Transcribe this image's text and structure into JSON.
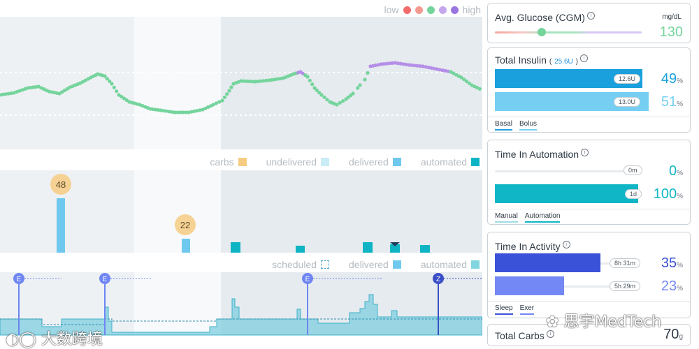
{
  "legend_top": {
    "low": "low",
    "high": "high",
    "colors": [
      "#f36b6b",
      "#f59a90",
      "#74d49c",
      "#c5a6ef",
      "#9a74df"
    ]
  },
  "legend_mid": {
    "carbs": "carbs",
    "undelivered": "undelivered",
    "delivered": "delivered",
    "automated": "automated",
    "colors": {
      "carbs": "#f6cc82",
      "undelivered": "#c9ecf6",
      "delivered": "#6fc9ee",
      "automated": "#0fb4c4"
    }
  },
  "legend_bottom": {
    "scheduled": "scheduled",
    "delivered": "delivered",
    "automated": "automated"
  },
  "carbs_markers": [
    {
      "value": "48"
    },
    {
      "value": "22"
    }
  ],
  "event_markers": [
    {
      "letter": "E"
    },
    {
      "letter": "E"
    },
    {
      "letter": "E"
    },
    {
      "letter": "Z"
    }
  ],
  "avg_glucose": {
    "title": "Avg. Glucose (CGM)",
    "unit": "mg/dL",
    "value": "130",
    "indicator_level": 0.32
  },
  "total_insulin": {
    "title": "Total Insulin",
    "total": "25.6U",
    "basal": {
      "units": "12.6U",
      "percent": "49",
      "level": 0.49,
      "color": "#1aa0dc"
    },
    "bolus": {
      "units": "13.0U",
      "percent": "51",
      "level": 0.51,
      "color": "#76cff2"
    },
    "tabs": [
      "Basal",
      "Bolus"
    ]
  },
  "time_in_automation": {
    "title": "Time In Automation",
    "manual": {
      "duration": "0m",
      "percent": "0",
      "level": 0.0
    },
    "automation": {
      "duration": "1d",
      "percent": "100",
      "level": 1.0,
      "color": "#10b6c6"
    },
    "tabs": [
      "Manual",
      "Automation"
    ]
  },
  "time_in_activity": {
    "title": "Time In Activity",
    "sleep": {
      "duration": "8h 31m",
      "percent": "35",
      "level": 0.35,
      "color": "#3a52d8"
    },
    "exercise": {
      "duration": "5h 29m",
      "percent": "23",
      "level": 0.23,
      "color": "#7488f5"
    },
    "tabs": [
      "Sleep",
      "Exer"
    ]
  },
  "total_carbs": {
    "title": "Total Carbs",
    "value": "70",
    "unit": "g"
  },
  "watermarks": {
    "left": "大数跨境",
    "right": "思宇MedTech"
  }
}
